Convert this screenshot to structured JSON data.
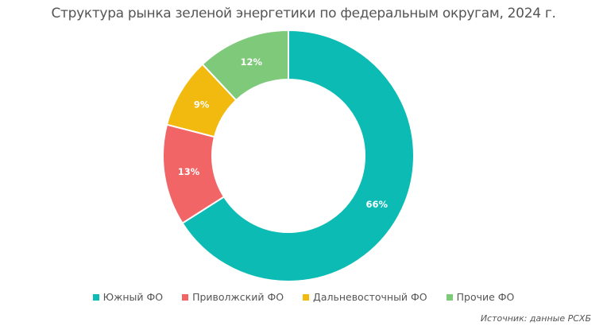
{
  "chart_data": {
    "type": "pie",
    "variant": "donut",
    "title": "Структура рынка зеленой энергетики по федеральным округам, 2024 г.",
    "categories": [
      "Южный ФО",
      "Приволжский ФО",
      "Дальневосточный ФО",
      "Прочие ФО"
    ],
    "values": [
      66,
      13,
      9,
      12
    ],
    "labels": [
      "66%",
      "13%",
      "9%",
      "12%"
    ],
    "colors": [
      "#0bbbb4",
      "#f26566",
      "#f2b90f",
      "#7fc97a"
    ],
    "legend_position": "bottom",
    "start_angle": "12 o'clock, clockwise",
    "source": "Источник: данные РСХБ"
  }
}
